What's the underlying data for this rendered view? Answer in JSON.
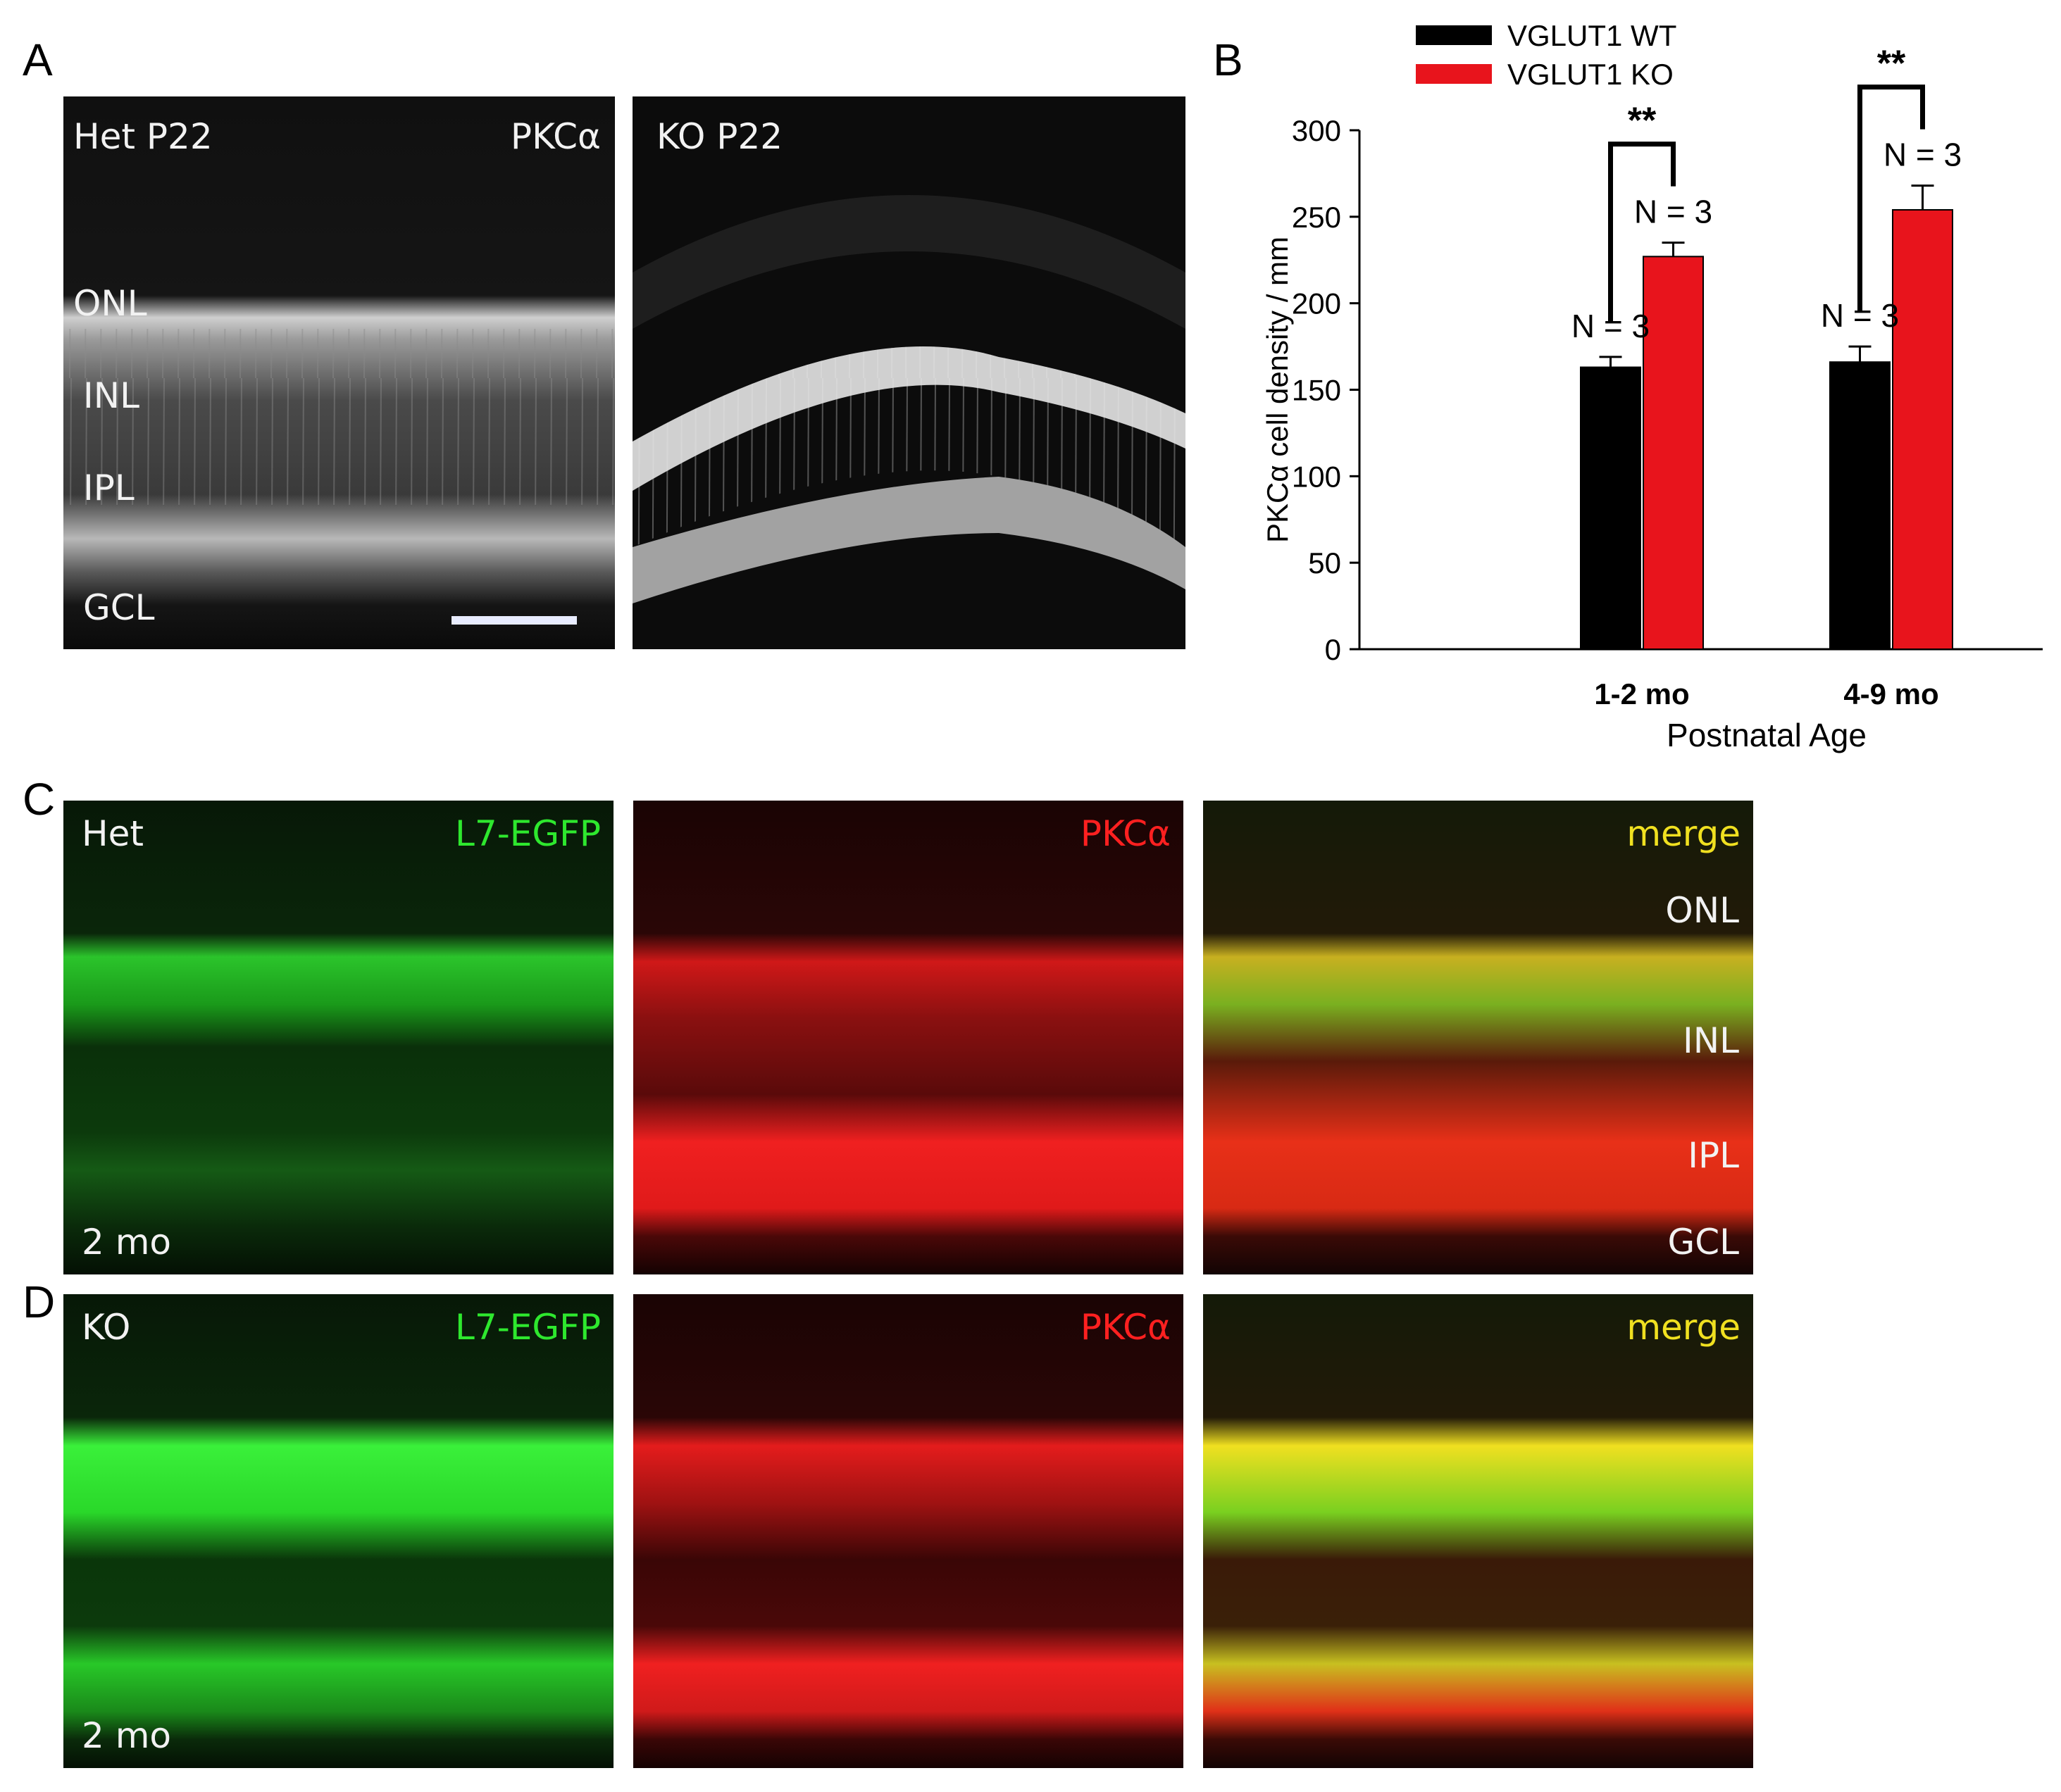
{
  "panel_labels": {
    "a": "A",
    "b": "B",
    "c": "C",
    "d": "D"
  },
  "panel_a": {
    "left": {
      "genotype_age": "Het  P22",
      "marker": "PKCα",
      "layers": [
        "ONL",
        "INL",
        "IPL",
        "GCL"
      ]
    },
    "right": {
      "genotype_age": "KO P22"
    }
  },
  "panel_c": {
    "genotype": "Het",
    "age": "2 mo",
    "channels": [
      "L7-EGFP",
      "PKCα",
      "merge"
    ],
    "layers": [
      "ONL",
      "INL",
      "IPL",
      "GCL"
    ]
  },
  "panel_d": {
    "genotype": "KO",
    "age": "2 mo",
    "channels": [
      "L7-EGFP",
      "PKCα",
      "merge"
    ]
  },
  "colors": {
    "green": "#2ee82e",
    "red": "#ff2020",
    "yellow": "#f0e020",
    "wt": "#000000",
    "ko": "#e8141c"
  },
  "chart_data": {
    "type": "bar",
    "categories": [
      "1-2 mo",
      "4-9 mo"
    ],
    "series": [
      {
        "name": "VGLUT1 WT",
        "values": [
          163,
          166
        ],
        "errors": [
          6,
          9
        ]
      },
      {
        "name": "VGLUT1 KO",
        "values": [
          227,
          254
        ],
        "errors": [
          8,
          14
        ]
      }
    ],
    "n_labels": [
      [
        "N = 3",
        "N = 3"
      ],
      [
        "N = 3",
        "N = 3"
      ]
    ],
    "significance": [
      "**",
      "**"
    ],
    "xlabel": "Postnatal Age",
    "ylabel": "PKCα cell density / mm",
    "ylim": [
      0,
      300
    ],
    "yticks": [
      0,
      50,
      100,
      150,
      200,
      250,
      300
    ],
    "legend_position": "top"
  }
}
